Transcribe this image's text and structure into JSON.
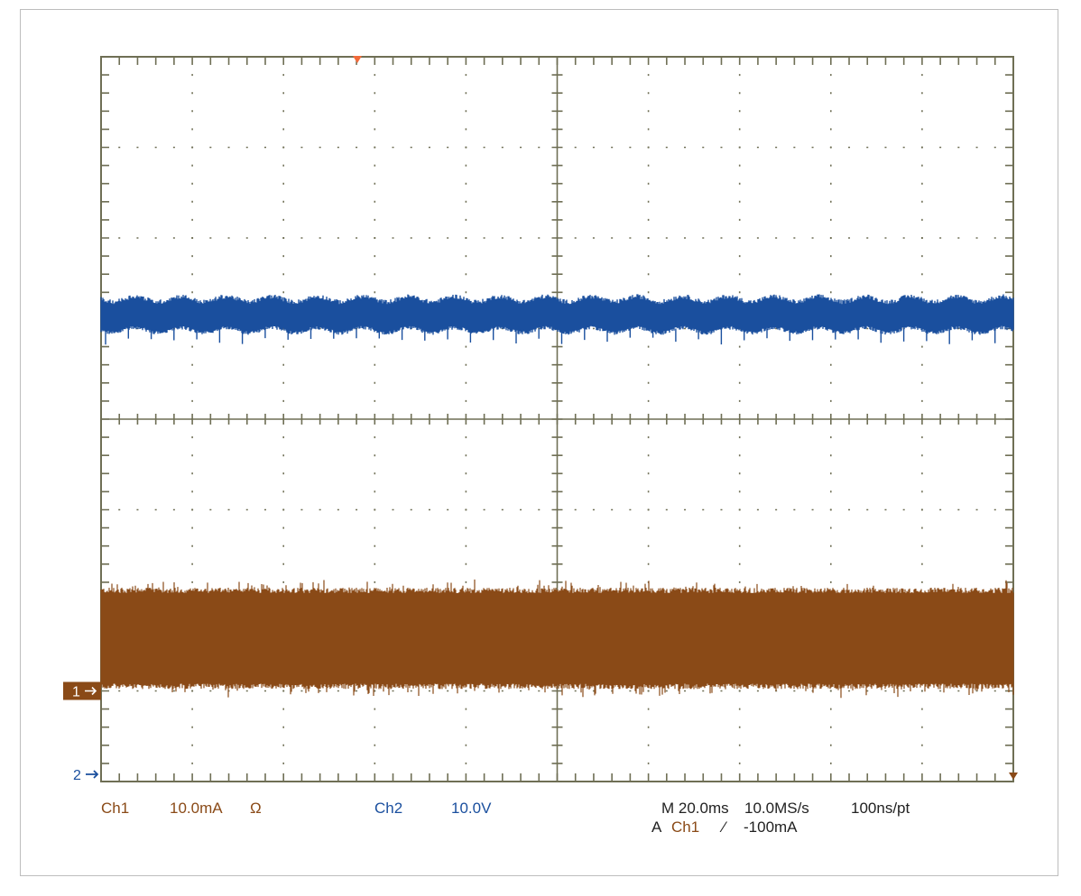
{
  "chart_data": {
    "type": "line",
    "title": "",
    "grid": true,
    "divisions": {
      "horizontal": 10,
      "vertical": 8
    },
    "series": [
      {
        "name": "Ch1",
        "color": "#8a4a17",
        "scale": "10.0mA",
        "band_divisions": [
          1.08,
          2.08
        ],
        "description_level": "noise band about 1 div above marker 1"
      },
      {
        "name": "Ch2",
        "color": "#1a4f9e",
        "scale": "10.0V",
        "band_divisions": [
          5.0,
          5.3
        ],
        "ripple_cycles": 20,
        "spike_count": 40
      }
    ],
    "markers": [
      {
        "label": "1",
        "color": "#8a4a17",
        "level_div": 1.0
      },
      {
        "label": "2",
        "color": "#1a4f9e",
        "level_div": 0.0
      }
    ],
    "trigger_marker_color": "#f26a3a"
  },
  "readouts": {
    "ch1_label": "Ch1",
    "ch1_scale": "10.0mA",
    "ch1_coupling": "Ω",
    "ch2_label": "Ch2",
    "ch2_scale": "10.0V",
    "timebase": "M 20.0ms",
    "sample_rate": "10.0MS/s",
    "resolution": "100ns/pt",
    "trigger_mode": "A",
    "trigger_source": "Ch1",
    "trigger_slope": "⁄",
    "trigger_level": "-100mA"
  },
  "colors": {
    "ch1": "#8a4a17",
    "ch2": "#1a4f9e",
    "grid": "#6f6f55",
    "readout_dark": "#222222"
  }
}
